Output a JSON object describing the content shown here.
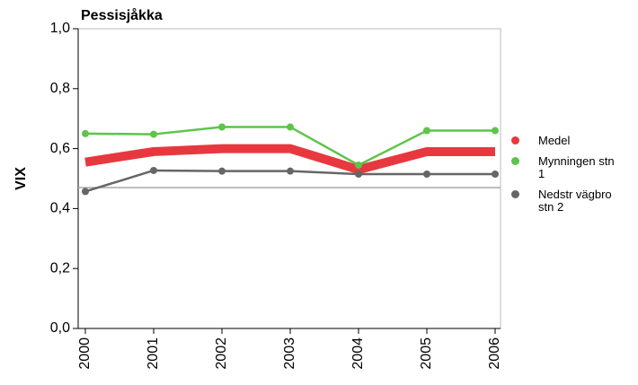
{
  "chart_data": {
    "type": "line",
    "title": "Pessisjåkka",
    "y_label": "VIX",
    "categories": [
      "2000",
      "2001",
      "2002",
      "2003",
      "2004",
      "2005",
      "2006"
    ],
    "series": [
      {
        "name": "Medel",
        "color": "#e8383f",
        "values": [
          0.555,
          0.59,
          0.6,
          0.6,
          0.53,
          0.59,
          0.59
        ]
      },
      {
        "name": "Mynningen stn 1",
        "color": "#5ec44a",
        "values": [
          0.65,
          0.648,
          0.672,
          0.672,
          0.545,
          0.66,
          0.66
        ]
      },
      {
        "name": "Nedstr vägbro stn 2",
        "color": "#666666",
        "values": [
          0.457,
          0.527,
          0.525,
          0.525,
          0.515,
          0.515,
          0.515
        ]
      }
    ],
    "reference_line": {
      "value": 0.47,
      "color": "#aaaaaa"
    },
    "ylim": [
      0,
      1
    ],
    "yticks": [
      {
        "value": 0,
        "label": "0,0"
      },
      {
        "value": 0.2,
        "label": "0,2"
      },
      {
        "value": 0.4,
        "label": "0,4"
      },
      {
        "value": 0.6,
        "label": "0,6"
      },
      {
        "value": 0.8,
        "label": "0,8"
      },
      {
        "value": 1,
        "label": "1,0"
      }
    ],
    "grid": false,
    "legend": "right"
  }
}
